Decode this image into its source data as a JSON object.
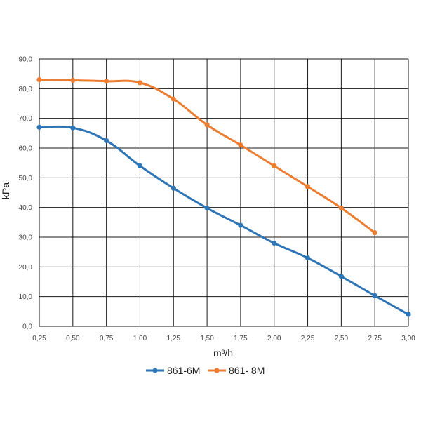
{
  "chart_data": {
    "type": "line",
    "xlabel": "m³/h",
    "ylabel": "kPa",
    "xlim": [
      0.25,
      3.0
    ],
    "ylim": [
      0,
      90
    ],
    "x_ticks": [
      "0,25",
      "0,50",
      "0,75",
      "1,00",
      "1,25",
      "1,50",
      "1,75",
      "2,00",
      "2,25",
      "2,50",
      "2,75",
      "3,00"
    ],
    "y_ticks": [
      "0,0",
      "10,0",
      "20,0",
      "30,0",
      "40,0",
      "50,0",
      "60,0",
      "70,0",
      "80,0",
      "90,0"
    ],
    "grid": true,
    "legend_position": "bottom",
    "series": [
      {
        "name": "861-6M",
        "color": "#2e75b6",
        "x": [
          0.25,
          0.5,
          0.75,
          1.0,
          1.25,
          1.5,
          1.75,
          2.0,
          2.25,
          2.5,
          2.75,
          3.0
        ],
        "values": [
          67.0,
          66.8,
          62.5,
          54.0,
          46.5,
          39.8,
          34.0,
          28.0,
          23.0,
          16.8,
          10.3,
          4.0
        ]
      },
      {
        "name": "861- 8M",
        "color": "#ed7d31",
        "x": [
          0.25,
          0.5,
          0.75,
          1.0,
          1.25,
          1.5,
          1.75,
          2.0,
          2.25,
          2.5,
          2.75
        ],
        "values": [
          83.0,
          82.8,
          82.5,
          82.0,
          76.5,
          67.8,
          61.0,
          54.0,
          47.0,
          39.8,
          31.5
        ]
      }
    ]
  }
}
